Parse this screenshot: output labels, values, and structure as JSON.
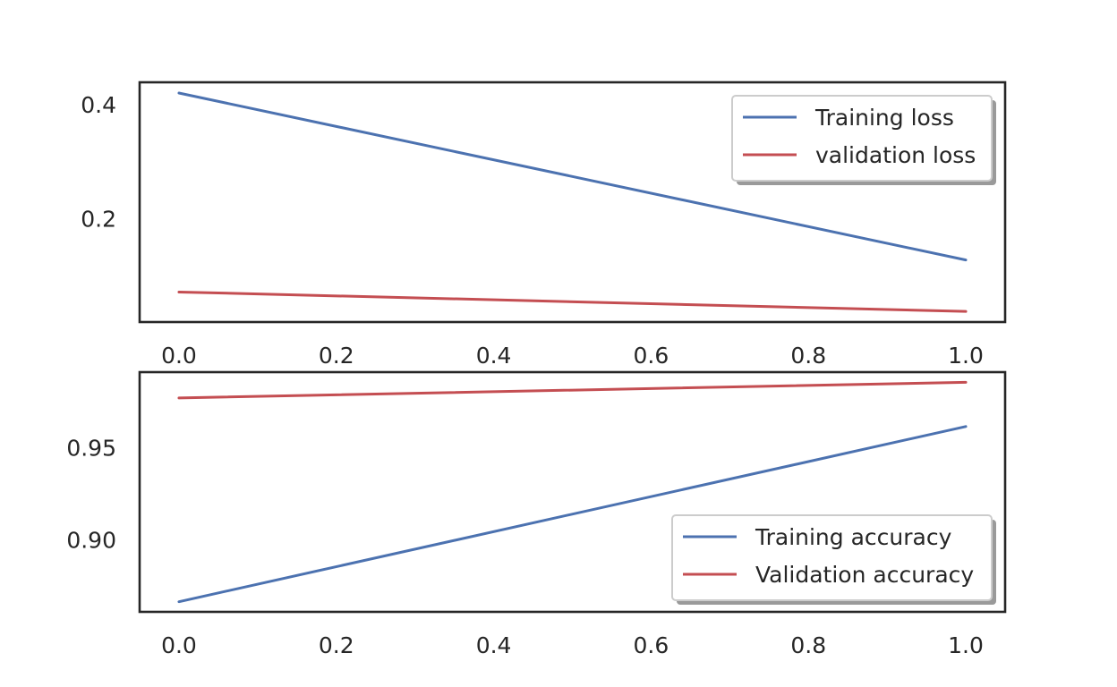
{
  "chart_data": [
    {
      "type": "line",
      "title": "",
      "xlabel": "",
      "ylabel": "",
      "x": [
        0.0,
        1.0
      ],
      "xlim": [
        -0.05,
        1.05
      ],
      "ylim": [
        0.0195,
        0.4388
      ],
      "xticks": [
        0.0,
        0.2,
        0.4,
        0.6,
        0.8,
        1.0
      ],
      "xtick_labels": [
        "0.0",
        "0.2",
        "0.4",
        "0.6",
        "0.8",
        "1.0"
      ],
      "yticks": [
        0.2,
        0.4
      ],
      "ytick_labels": [
        "0.2",
        "0.4"
      ],
      "grid": false,
      "legend_position": "upper right",
      "series": [
        {
          "name": "Training loss",
          "color": "#4c72b0",
          "values": [
            0.42,
            0.128
          ]
        },
        {
          "name": "validation loss",
          "color": "#c44e52",
          "values": [
            0.072,
            0.038
          ]
        }
      ]
    },
    {
      "type": "line",
      "title": "",
      "xlabel": "",
      "ylabel": "",
      "x": [
        0.0,
        1.0
      ],
      "xlim": [
        -0.05,
        1.05
      ],
      "ylim": [
        0.861,
        0.991
      ],
      "xticks": [
        0.0,
        0.2,
        0.4,
        0.6,
        0.8,
        1.0
      ],
      "xtick_labels": [
        "0.0",
        "0.2",
        "0.4",
        "0.6",
        "0.8",
        "1.0"
      ],
      "yticks": [
        0.9,
        0.95
      ],
      "ytick_labels": [
        "0.90",
        "0.95"
      ],
      "grid": false,
      "legend_position": "lower right",
      "series": [
        {
          "name": "Training accuracy",
          "color": "#4c72b0",
          "values": [
            0.8665,
            0.9615
          ]
        },
        {
          "name": "Validation accuracy",
          "color": "#c44e52",
          "values": [
            0.977,
            0.9855
          ]
        }
      ]
    }
  ]
}
